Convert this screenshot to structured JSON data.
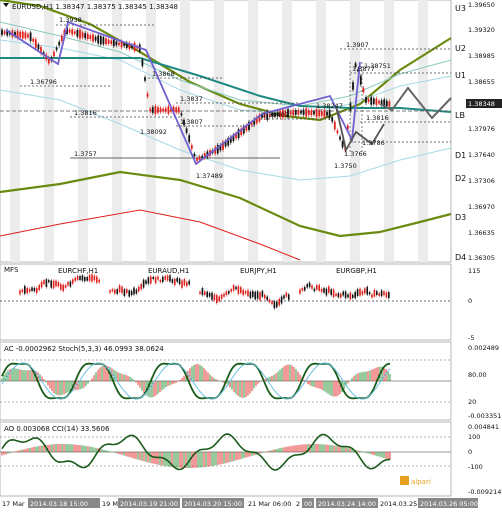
{
  "window": {
    "symbol_header": "EURUSD,H1",
    "ohlc": "1.38347 1.38375 1.38345 1.38348",
    "current_price": "1.38348"
  },
  "price_axis": {
    "ticks": [
      "1.39650",
      "1.39320",
      "1.38985",
      "1.38655",
      "1.38320",
      "1.37976",
      "1.37640",
      "1.37306",
      "1.36970",
      "1.36635",
      "1.36305"
    ],
    "levels": [
      "U3",
      "U2",
      "U1",
      "LB",
      "D1",
      "D2",
      "D3",
      "D4"
    ]
  },
  "price_labels": [
    "1.3938",
    "1.36796",
    "1.3868",
    "1.3837",
    "1.3816",
    "1.38092",
    "1.3807",
    "1.38402",
    "1.3757",
    "1.37489",
    "1.38247",
    "1.3907",
    "1.3877",
    "1.38751",
    "1.3816",
    "1.3786",
    "1.3766",
    "1.3750"
  ],
  "multi_pair": {
    "label": "MFS",
    "pairs": [
      "EURCHF,H1",
      "EURAUD,H1",
      "EURJPY,H1",
      "EURGBP,H1"
    ],
    "ticks": [
      "115",
      "0",
      "-5"
    ]
  },
  "ac_panel": {
    "header": "AC -0.0002962  Stoch(5,3,3) 46.0993 38.0624",
    "ticks": [
      "0.002489",
      "80.00",
      "20",
      "-0.003351"
    ]
  },
  "ao_panel": {
    "header": "AO 0.003068  CCI(14) 33.5606",
    "ticks": [
      "0.004841",
      "100",
      "0",
      "-100",
      "-0.009214"
    ],
    "brand": "alpari"
  },
  "time_axis": {
    "labels": [
      "17 Mar",
      "2014.03.18 15:00",
      "19 M",
      "2014.03.19 21:00",
      "2014.03.20 15:00",
      "21 Mar 06:00",
      "2",
      "00",
      "2014.03.24 14:00",
      "2014.03.25 05:00",
      "2014.03.26 05:00"
    ]
  },
  "colors": {
    "bull": "#111111",
    "bear": "#e0201c",
    "teal": "#1f8a80",
    "olive": "#6a8a10",
    "band": "#eaeaea",
    "path": "#7060d0"
  }
}
